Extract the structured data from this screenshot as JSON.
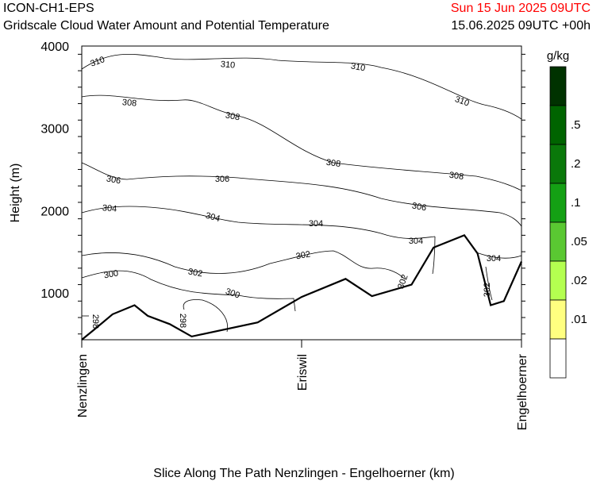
{
  "header": {
    "model": "ICON-CH1-EPS",
    "subtitle": "Gridscale Cloud Water Amount and Potential Temperature",
    "valid_time": "Sun 15 Jun 2025 09UTC",
    "init_time": "15.06.2025 09UTC +00h"
  },
  "colors": {
    "valid_time": "#ff0000",
    "terrain": "#000000"
  },
  "chart_data": {
    "type": "contour",
    "title": "Gridscale Cloud Water Amount and Potential Temperature",
    "xlabel": "Slice Along The Path Nenzlingen - Engelhoerner (km)",
    "ylabel": "Height (m)",
    "ylim": [
      430,
      4000
    ],
    "y_ticks": [
      1000,
      2000,
      3000,
      4000
    ],
    "x_locations": [
      "Nenzlingen",
      "Eriswil",
      "Engelhoerner"
    ],
    "colorbar": {
      "unit": "g/kg",
      "levels": [
        ".01",
        ".02",
        ".05",
        ".1",
        ".2",
        ".5"
      ],
      "colors": [
        "#ffffff",
        "#ffff80",
        "#b4ff50",
        "#5ac832",
        "#14a014",
        "#0a780a",
        "#006400",
        "#003200"
      ]
    },
    "isentrope_labels": [
      "310",
      "308",
      "306",
      "304",
      "302",
      "300",
      "298"
    ],
    "terrain_m": [
      [
        0,
        430
      ],
      [
        0.03,
        560
      ],
      [
        0.07,
        740
      ],
      [
        0.12,
        850
      ],
      [
        0.15,
        720
      ],
      [
        0.2,
        620
      ],
      [
        0.25,
        470
      ],
      [
        0.4,
        640
      ],
      [
        0.5,
        950
      ],
      [
        0.6,
        1170
      ],
      [
        0.66,
        960
      ],
      [
        0.75,
        1100
      ],
      [
        0.8,
        1550
      ],
      [
        0.87,
        1700
      ],
      [
        0.9,
        1480
      ],
      [
        0.93,
        850
      ],
      [
        0.96,
        900
      ],
      [
        1.0,
        1380
      ]
    ]
  }
}
